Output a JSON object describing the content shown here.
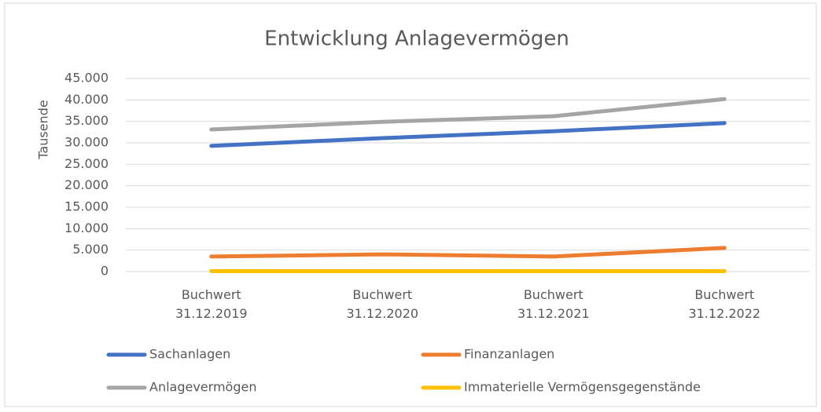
{
  "chart_data": {
    "type": "line",
    "title": "Entwicklung Anlagevermögen",
    "y_label": "Tausende",
    "categories": [
      "Buchwert 31.12.2019",
      "Buchwert 31.12.2020",
      "Buchwert 31.12.2021",
      "Buchwert 31.12.2022"
    ],
    "series": [
      {
        "name": "Sachanlagen",
        "color": "#4472c4",
        "values": [
          29300,
          31100,
          32700,
          34600
        ]
      },
      {
        "name": "Finanzanlagen",
        "color": "#ed7d31",
        "values": [
          3500,
          4000,
          3500,
          5500
        ]
      },
      {
        "name": "Anlagevermögen",
        "color": "#a5a5a5",
        "values": [
          33100,
          34900,
          36200,
          40200
        ]
      },
      {
        "name": "Immaterielle Vermögensgegenstände",
        "color": "#ffc000",
        "values": [
          100,
          100,
          100,
          100
        ]
      }
    ],
    "ylim": [
      0,
      45000
    ],
    "yticks": [
      0,
      {
        "value": 5000,
        "label": "5.000"
      },
      {
        "value": 10000,
        "label": "10.000"
      },
      {
        "value": 15000,
        "label": "15.000"
      },
      {
        "value": 20000,
        "label": "20.000"
      },
      {
        "value": 25000,
        "label": "25.000"
      },
      {
        "value": 30000,
        "label": "30.000"
      },
      {
        "value": 35000,
        "label": "35.000"
      },
      {
        "value": 40000,
        "label": "40.000"
      },
      {
        "value": 45000,
        "label": "45.000"
      }
    ],
    "grid": true,
    "legend": "bottom"
  }
}
